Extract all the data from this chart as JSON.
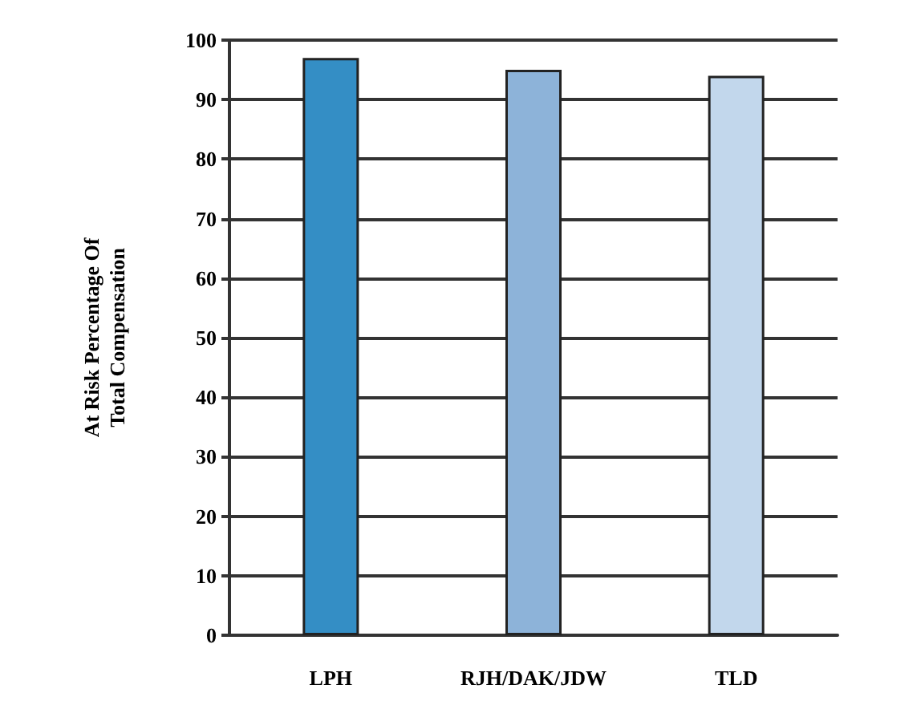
{
  "chart_data": {
    "type": "bar",
    "ylabel": "At Risk Percentage Of\nTotal Compensation",
    "categories": [
      "LPH",
      "RJH/DAK/JDW",
      "TLD"
    ],
    "values": [
      97,
      95,
      94
    ],
    "colors": [
      "#348ec5",
      "#8db3d9",
      "#c2d7ec"
    ],
    "ylim": [
      0,
      100
    ],
    "yticks": [
      0,
      10,
      20,
      30,
      40,
      50,
      60,
      70,
      80,
      90,
      100
    ],
    "grid": "y"
  }
}
